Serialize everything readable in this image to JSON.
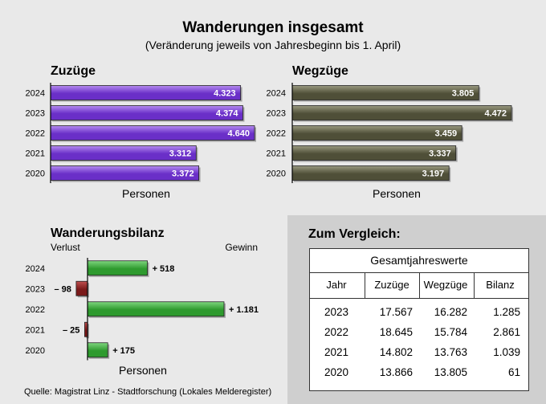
{
  "header": {
    "title": "Wanderungen insgesamt",
    "subtitle": "(Veränderung jeweils von Jahresbeginn bis 1. April)"
  },
  "chart_data": [
    {
      "type": "bar",
      "orientation": "horizontal",
      "title": "Zuzüge",
      "xlabel": "Personen",
      "categories": [
        "2024",
        "2023",
        "2022",
        "2021",
        "2020"
      ],
      "values": [
        4323,
        4374,
        4640,
        3312,
        3372
      ],
      "value_labels": [
        "4.323",
        "4.374",
        "4.640",
        "3.312",
        "3.372"
      ],
      "xlim": [
        0,
        5000
      ],
      "color": "#6a2fc8"
    },
    {
      "type": "bar",
      "orientation": "horizontal",
      "title": "Wegzüge",
      "xlabel": "Personen",
      "categories": [
        "2024",
        "2023",
        "2022",
        "2021",
        "2020"
      ],
      "values": [
        3805,
        4472,
        3459,
        3337,
        3197
      ],
      "value_labels": [
        "3.805",
        "4.472",
        "3.459",
        "3.337",
        "3.197"
      ],
      "xlim": [
        0,
        5000
      ],
      "color": "#5e5e44"
    },
    {
      "type": "bar",
      "orientation": "horizontal",
      "title": "Wanderungsbilanz",
      "xlabel": "Personen",
      "left_label": "Verlust",
      "right_label": "Gewinn",
      "categories": [
        "2024",
        "2023",
        "2022",
        "2021",
        "2020"
      ],
      "values": [
        518,
        -98,
        1181,
        -25,
        175
      ],
      "value_labels": [
        "+ 518",
        "– 98",
        "+ 1.181",
        "– 25",
        "+ 175"
      ],
      "positive_color": "#2e9a2e",
      "negative_color": "#8a1e1e"
    }
  ],
  "comparison": {
    "title": "Zum Vergleich:",
    "table_title": "Gesamtjahreswerte",
    "columns": [
      "Jahr",
      "Zuzüge",
      "Wegzüge",
      "Bilanz"
    ],
    "rows": [
      [
        "2023",
        "17.567",
        "16.282",
        "1.285"
      ],
      [
        "2022",
        "18.645",
        "15.784",
        "2.861"
      ],
      [
        "2021",
        "14.802",
        "13.763",
        "1.039"
      ],
      [
        "2020",
        "13.866",
        "13.805",
        "61"
      ]
    ]
  },
  "source": "Quelle: Magistrat Linz - Stadtforschung (Lokales Melderegister)"
}
